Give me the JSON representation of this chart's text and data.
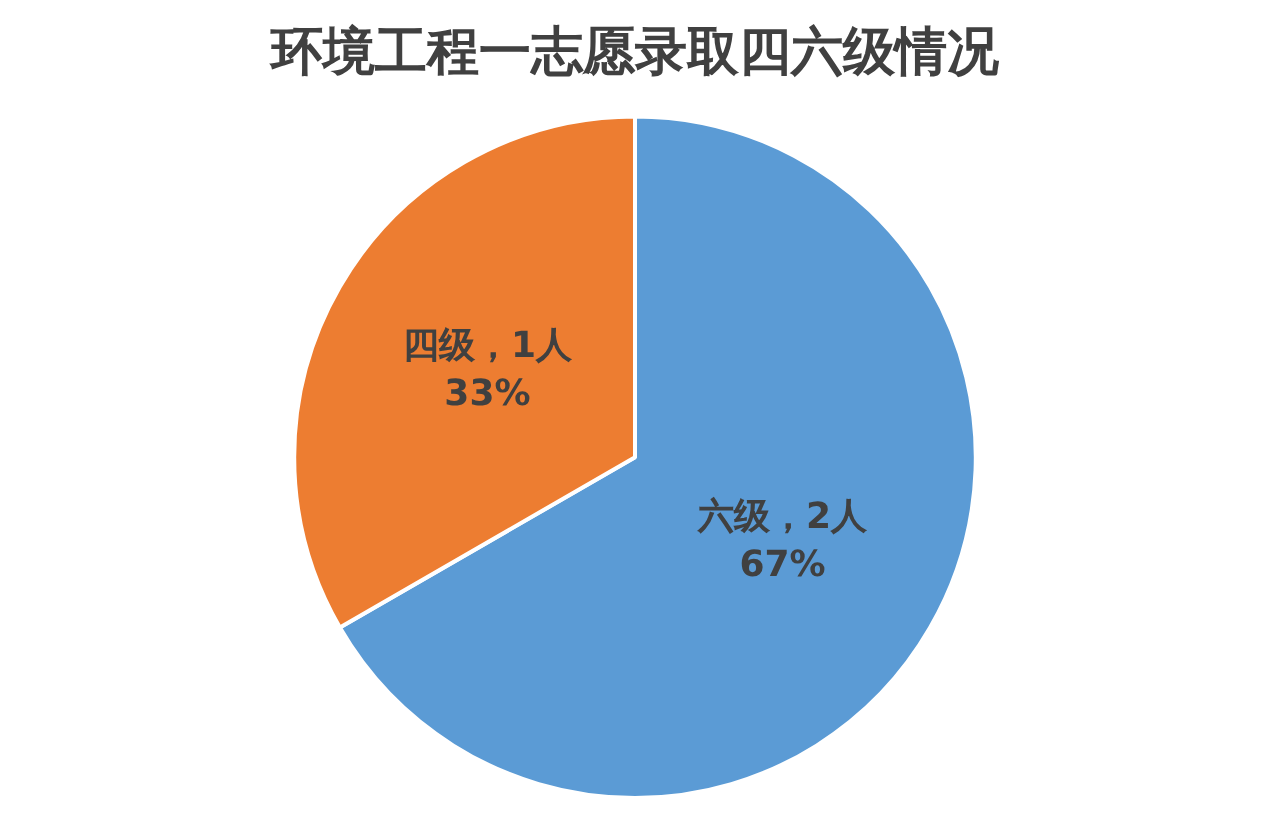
{
  "chart_data": {
    "type": "pie",
    "title": "环境工程一志愿录取四六级情况",
    "categories": [
      "六级",
      "四级"
    ],
    "values": [
      2,
      1
    ],
    "colors": [
      "#5b9bd5",
      "#ed7d31"
    ],
    "value_labels": [
      "2人\n67%",
      "1人\n33%"
    ],
    "legend": false
  }
}
